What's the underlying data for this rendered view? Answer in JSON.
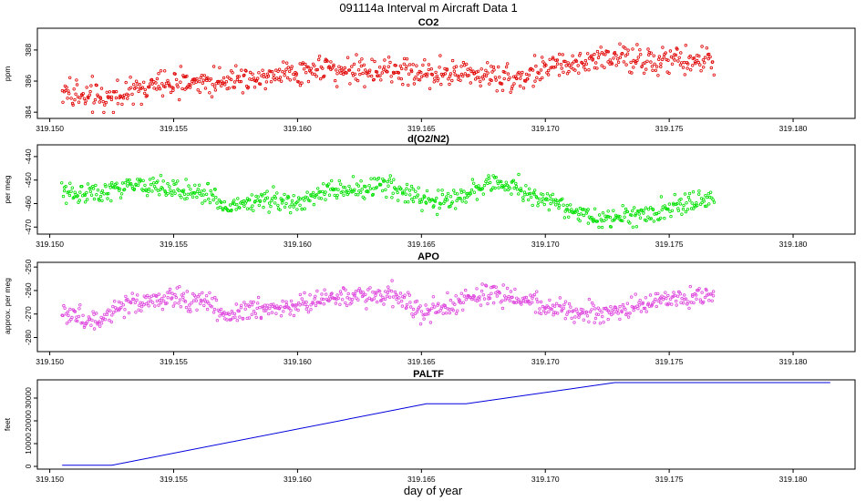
{
  "title": "091114a   Interval m Aircraft Data 1",
  "xlabel": "day of year",
  "chart_data": [
    {
      "type": "scatter",
      "title": "CO2",
      "ylabel": "ppm",
      "color": "#e00000",
      "xlim": [
        319.1495,
        319.1825
      ],
      "ylim": [
        383.6,
        389.4
      ],
      "xticks": [
        "319.150",
        "319.155",
        "319.160",
        "319.165",
        "319.170",
        "319.175",
        "319.180"
      ],
      "yticks": [
        "384",
        "386",
        "388"
      ],
      "x_range": [
        319.1505,
        319.1768
      ],
      "trend": [
        [
          319.1505,
          385.3
        ],
        [
          319.152,
          384.9
        ],
        [
          319.1545,
          385.8
        ],
        [
          319.158,
          386.2
        ],
        [
          319.1605,
          386.8
        ],
        [
          319.164,
          386.6
        ],
        [
          319.167,
          386.5
        ],
        [
          319.169,
          386.2
        ],
        [
          319.1705,
          387.0
        ],
        [
          319.1725,
          387.6
        ],
        [
          319.1745,
          387.2
        ],
        [
          319.1768,
          387.3
        ]
      ],
      "noise": 0.7
    },
    {
      "type": "scatter",
      "title": "d(O2/N2)",
      "ylabel": "per meg",
      "color": "#00e000",
      "xlim": [
        319.1495,
        319.1825
      ],
      "ylim": [
        -473,
        -435
      ],
      "xticks": [
        "319.150",
        "319.155",
        "319.160",
        "319.165",
        "319.170",
        "319.175",
        "319.180"
      ],
      "yticks": [
        "-440",
        "-450",
        "-460",
        "-470"
      ],
      "x_range": [
        319.1505,
        319.1768
      ],
      "trend": [
        [
          319.1505,
          -455
        ],
        [
          319.152,
          -456
        ],
        [
          319.1535,
          -452
        ],
        [
          319.155,
          -454
        ],
        [
          319.1565,
          -456
        ],
        [
          319.157,
          -462
        ],
        [
          319.1585,
          -458
        ],
        [
          319.16,
          -460
        ],
        [
          319.1615,
          -454
        ],
        [
          319.164,
          -453
        ],
        [
          319.165,
          -459
        ],
        [
          319.1665,
          -458
        ],
        [
          319.1675,
          -451
        ],
        [
          319.1685,
          -452
        ],
        [
          319.1705,
          -461
        ],
        [
          319.1725,
          -467
        ],
        [
          319.174,
          -464
        ],
        [
          319.1768,
          -458
        ]
      ],
      "noise": 3.5
    },
    {
      "type": "scatter",
      "title": "APO",
      "ylabel": "approx. per meg",
      "color": "#dd44dd",
      "xlim": [
        319.1495,
        319.1825
      ],
      "ylim": [
        -286,
        -248
      ],
      "xticks": [
        "319.150",
        "319.155",
        "319.160",
        "319.165",
        "319.170",
        "319.175",
        "319.180"
      ],
      "yticks": [
        "-250",
        "-260",
        "-270",
        "-280"
      ],
      "x_range": [
        319.1505,
        319.1768
      ],
      "trend": [
        [
          319.1505,
          -270
        ],
        [
          319.152,
          -273
        ],
        [
          319.1535,
          -265
        ],
        [
          319.155,
          -263
        ],
        [
          319.1565,
          -265
        ],
        [
          319.157,
          -270
        ],
        [
          319.1585,
          -268
        ],
        [
          319.16,
          -266
        ],
        [
          319.1615,
          -262
        ],
        [
          319.164,
          -262
        ],
        [
          319.165,
          -270
        ],
        [
          319.1665,
          -266
        ],
        [
          319.1675,
          -261
        ],
        [
          319.1685,
          -262
        ],
        [
          319.1705,
          -268
        ],
        [
          319.1725,
          -270
        ],
        [
          319.174,
          -266
        ],
        [
          319.1768,
          -262
        ]
      ],
      "noise": 3.5
    },
    {
      "type": "line",
      "title": "PALTF",
      "ylabel": "feet",
      "color": "#0000dd",
      "xlim": [
        319.1495,
        319.1825
      ],
      "ylim": [
        -1200,
        38000
      ],
      "xticks": [
        "319.150",
        "319.155",
        "319.160",
        "319.165",
        "319.170",
        "319.175",
        "319.180"
      ],
      "yticks": [
        "0",
        "10000",
        "20000",
        "30000"
      ],
      "points": [
        [
          319.1505,
          500
        ],
        [
          319.1525,
          500
        ],
        [
          319.1652,
          27500
        ],
        [
          319.1668,
          27500
        ],
        [
          319.1728,
          36800
        ],
        [
          319.1815,
          36800
        ]
      ]
    }
  ]
}
